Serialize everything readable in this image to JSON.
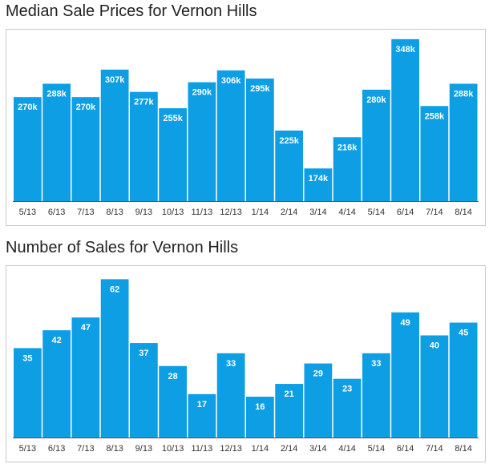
{
  "colors": {
    "bar": "#0e9ee4",
    "axis": "#555555",
    "frame": "#c8c8c8"
  },
  "chart_data": [
    {
      "type": "bar",
      "title": "Median Sale Prices for Vernon Hills",
      "categories": [
        "5/13",
        "6/13",
        "7/13",
        "8/13",
        "9/13",
        "10/13",
        "11/13",
        "12/13",
        "1/14",
        "2/14",
        "3/14",
        "4/14",
        "5/14",
        "6/14",
        "7/14",
        "8/14"
      ],
      "values": [
        270,
        288,
        270,
        307,
        277,
        255,
        290,
        306,
        295,
        225,
        174,
        216,
        280,
        348,
        258,
        288
      ],
      "value_labels": [
        "270k",
        "288k",
        "270k",
        "307k",
        "277k",
        "255k",
        "290k",
        "306k",
        "295k",
        "225k",
        "174k",
        "216k",
        "280k",
        "348k",
        "258k",
        "288k"
      ],
      "ylim": [
        130,
        350
      ],
      "grid": false,
      "legend": "none"
    },
    {
      "type": "bar",
      "title": "Number of Sales for Vernon Hills",
      "categories": [
        "5/13",
        "6/13",
        "7/13",
        "8/13",
        "9/13",
        "10/13",
        "11/13",
        "12/13",
        "1/14",
        "2/14",
        "3/14",
        "4/14",
        "5/14",
        "6/14",
        "7/14",
        "8/14"
      ],
      "values": [
        35,
        42,
        47,
        62,
        37,
        28,
        17,
        33,
        16,
        21,
        29,
        23,
        33,
        49,
        40,
        45
      ],
      "value_labels": [
        "35",
        "42",
        "47",
        "62",
        "37",
        "28",
        "17",
        "33",
        "16",
        "21",
        "29",
        "23",
        "33",
        "49",
        "40",
        "45"
      ],
      "ylim": [
        0,
        64
      ],
      "grid": false,
      "legend": "none"
    }
  ]
}
